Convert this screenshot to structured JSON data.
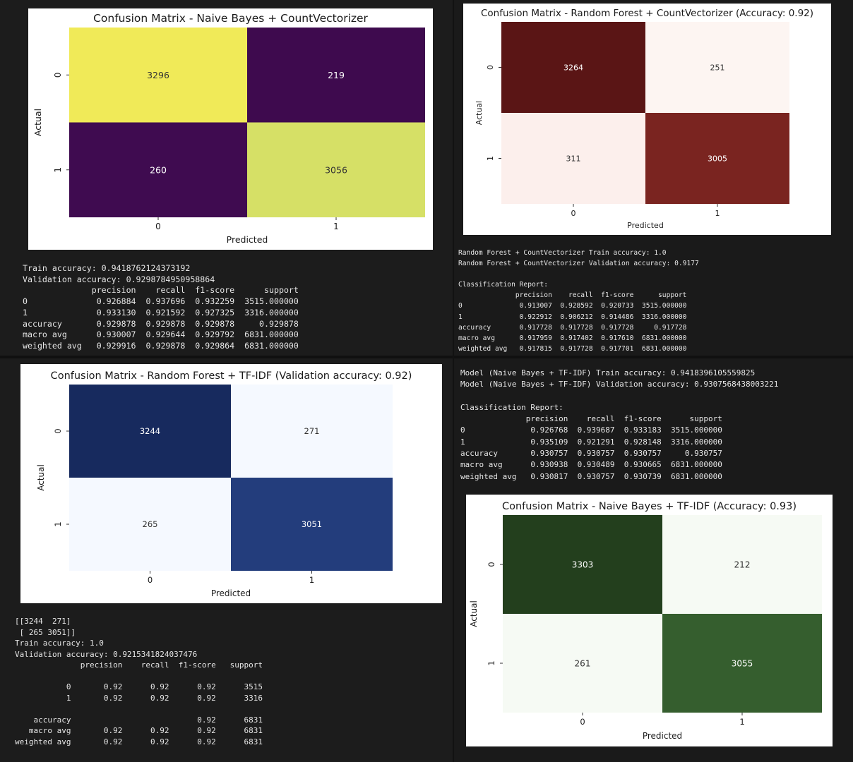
{
  "chart_data": [
    {
      "type": "heatmap",
      "title": "Confusion Matrix - Naive Bayes + CountVectorizer",
      "xlabel": "Predicted",
      "ylabel": "Actual",
      "x_categories": [
        "0",
        "1"
      ],
      "y_categories": [
        "0",
        "1"
      ],
      "values": [
        [
          3296,
          219
        ],
        [
          260,
          3056
        ]
      ],
      "colormap": "viridis",
      "cell_colors": [
        [
          "#f0ea58",
          "#3e0a4e"
        ],
        [
          "#3f0b50",
          "#d6e066"
        ]
      ],
      "text_colors": [
        [
          "#333333",
          "#ffffff"
        ],
        [
          "#ffffff",
          "#333333"
        ]
      ],
      "colorbar": false
    },
    {
      "type": "heatmap",
      "title": "Confusion Matrix - Random Forest + CountVectorizer (Accuracy: 0.92)",
      "xlabel": "Predicted",
      "ylabel": "Actual",
      "x_categories": [
        "0",
        "1"
      ],
      "y_categories": [
        "0",
        "1"
      ],
      "values": [
        [
          3264,
          251
        ],
        [
          311,
          3005
        ]
      ],
      "colormap": "Reds",
      "cell_colors": [
        [
          "#5a1515",
          "#fdf5f2"
        ],
        [
          "#fcefec",
          "#7a2420"
        ]
      ],
      "text_colors": [
        [
          "#ffffff",
          "#333333"
        ],
        [
          "#333333",
          "#ffffff"
        ]
      ],
      "colorbar": false
    },
    {
      "type": "heatmap",
      "title": "Confusion Matrix - Random Forest + TF-IDF (Validation accuracy: 0.92)",
      "xlabel": "Predicted",
      "ylabel": "Actual",
      "x_categories": [
        "0",
        "1"
      ],
      "y_categories": [
        "0",
        "1"
      ],
      "values": [
        [
          3244,
          271
        ],
        [
          265,
          3051
        ]
      ],
      "colormap": "Blues",
      "cell_colors": [
        [
          "#172a5e",
          "#f5f9ff"
        ],
        [
          "#f5f9ff",
          "#233d7c"
        ]
      ],
      "text_colors": [
        [
          "#ffffff",
          "#333333"
        ],
        [
          "#333333",
          "#ffffff"
        ]
      ],
      "colorbar": false
    },
    {
      "type": "heatmap",
      "title": "Confusion Matrix - Naive Bayes + TF-IDF (Accuracy: 0.93)",
      "xlabel": "Predicted",
      "ylabel": "Actual",
      "x_categories": [
        "0",
        "1"
      ],
      "y_categories": [
        "0",
        "1"
      ],
      "values": [
        [
          3303,
          212
        ],
        [
          261,
          3055
        ]
      ],
      "colormap": "Greens",
      "cell_colors": [
        [
          "#233f1d",
          "#f6faf4"
        ],
        [
          "#f6faf4",
          "#355e2e"
        ]
      ],
      "text_colors": [
        [
          "#ffffff",
          "#333333"
        ],
        [
          "#333333",
          "#ffffff"
        ]
      ],
      "colorbar": false
    }
  ],
  "outputs": {
    "nb_count": [
      "Train accuracy: 0.9418762124373192",
      "Validation accuracy: 0.9298784950958864",
      "              precision    recall  f1-score      support",
      "0              0.926884  0.937696  0.932259  3515.000000",
      "1              0.933130  0.921592  0.927325  3316.000000",
      "accuracy       0.929878  0.929878  0.929878     0.929878",
      "macro avg      0.930007  0.929644  0.929792  6831.000000",
      "weighted avg   0.929916  0.929878  0.929864  6831.000000"
    ],
    "rf_count": [
      "Random Forest + CountVectorizer Train accuracy: 1.0",
      "Random Forest + CountVectorizer Validation accuracy: 0.9177",
      "",
      "Classification Report:",
      "              precision    recall  f1-score      support",
      "0              0.913007  0.928592  0.920733  3515.000000",
      "1              0.922912  0.906212  0.914486  3316.000000",
      "accuracy       0.917728  0.917728  0.917728     0.917728",
      "macro avg      0.917959  0.917402  0.917610  6831.000000",
      "weighted avg   0.917815  0.917728  0.917701  6831.000000"
    ],
    "rf_tfidf": [
      "[[3244  271]",
      " [ 265 3051]]",
      "Train accuracy: 1.0",
      "Validation accuracy: 0.9215341824037476",
      "              precision    recall  f1-score   support",
      "",
      "           0       0.92      0.92      0.92      3515",
      "           1       0.92      0.92      0.92      3316",
      "",
      "    accuracy                           0.92      6831",
      "   macro avg       0.92      0.92      0.92      6831",
      "weighted avg       0.92      0.92      0.92      6831"
    ],
    "nb_tfidf": [
      "Model (Naive Bayes + TF-IDF) Train accuracy: 0.9418396105559825",
      "Model (Naive Bayes + TF-IDF) Validation accuracy: 0.9307568438003221",
      "",
      "Classification Report:",
      "              precision    recall  f1-score      support",
      "0              0.926768  0.939687  0.933183  3515.000000",
      "1              0.935109  0.921291  0.928148  3316.000000",
      "accuracy       0.930757  0.930757  0.930757     0.930757",
      "macro avg      0.930938  0.930489  0.930665  6831.000000",
      "weighted avg   0.930817  0.930757  0.930739  6831.000000"
    ]
  }
}
